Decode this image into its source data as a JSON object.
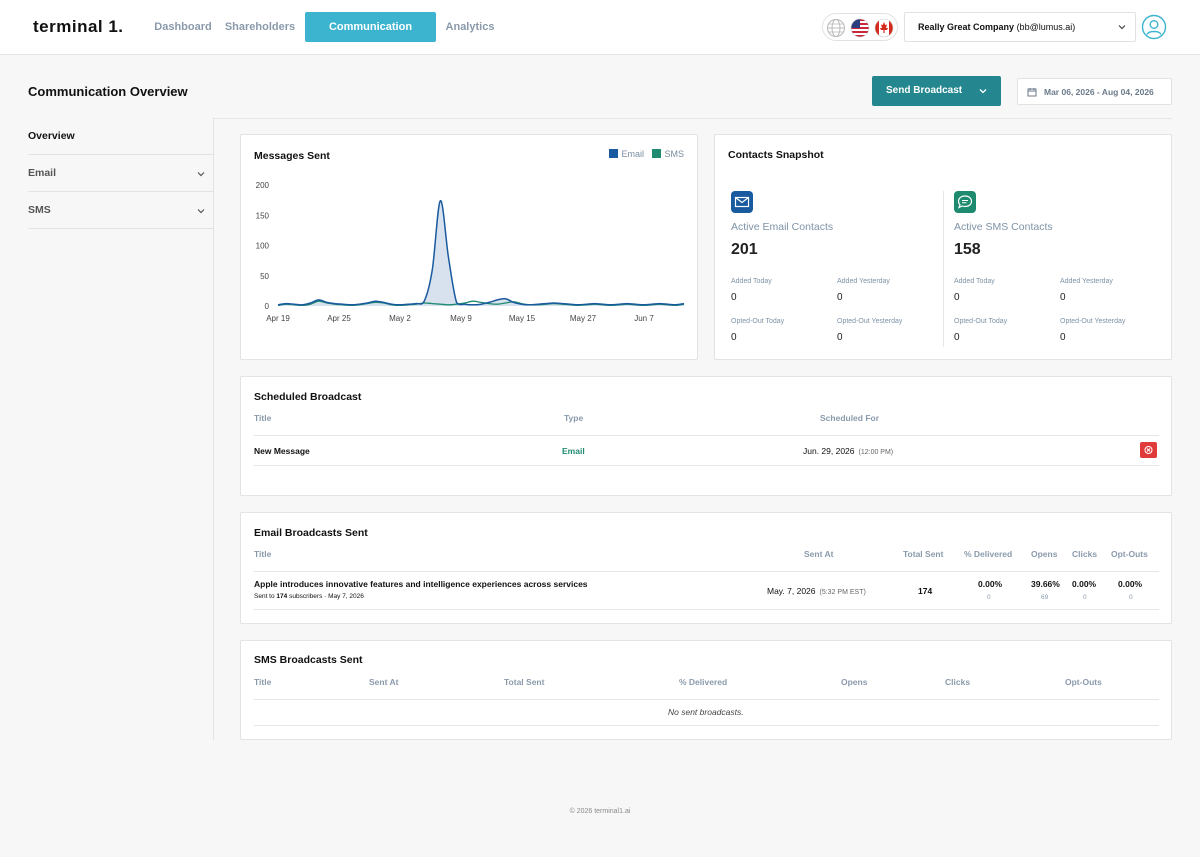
{
  "app": {
    "logo": "terminal 1."
  },
  "nav": {
    "tabs": [
      {
        "label": "Dashboard"
      },
      {
        "label": "Shareholders"
      },
      {
        "label": "Communication"
      },
      {
        "label": "Analytics"
      }
    ],
    "company_name": "Really Great Company",
    "company_email": "(bb@lumus.ai)"
  },
  "page": {
    "title": "Communication Overview",
    "send_broadcast_label": "Send Broadcast",
    "date_range": "Mar 06, 2026 - Aug 04, 2026"
  },
  "sidebar": {
    "items": [
      {
        "label": "Overview"
      },
      {
        "label": "Email"
      },
      {
        "label": "SMS"
      }
    ]
  },
  "messages_sent": {
    "title": "Messages Sent",
    "legend_email": "Email",
    "legend_sms": "SMS"
  },
  "chart_data": {
    "type": "area",
    "title": "Messages Sent",
    "colors": {
      "email": "#1a5a9e",
      "sms": "#1e8a6f",
      "email_fill": "#c9d8e8"
    },
    "x_ticks": [
      "Apr 19",
      "Apr 25",
      "May 2",
      "May 9",
      "May 15",
      "May 27",
      "Jun 7"
    ],
    "y_ticks": [
      0,
      50,
      100,
      150,
      200
    ],
    "ylim": [
      0,
      200
    ],
    "legend_position": "top-right",
    "x": [
      0,
      1,
      2,
      3,
      4,
      5,
      6,
      7,
      8,
      9,
      10,
      11,
      12,
      13,
      14,
      15,
      16,
      17,
      18,
      19,
      20,
      21,
      22,
      23,
      24,
      25,
      26,
      27,
      28,
      29,
      30,
      31,
      32,
      33,
      34,
      35,
      36,
      37,
      38,
      39,
      40,
      41,
      42,
      43,
      44,
      45,
      46,
      47,
      48,
      49,
      50
    ],
    "series": [
      {
        "name": "Email",
        "values": [
          2,
          4,
          3,
          2,
          5,
          10,
          6,
          4,
          3,
          2,
          3,
          5,
          8,
          6,
          3,
          2,
          3,
          4,
          8,
          60,
          174,
          80,
          6,
          3,
          2,
          3,
          6,
          10,
          12,
          6,
          3,
          2,
          3,
          4,
          5,
          4,
          3,
          2,
          3,
          4,
          3,
          2,
          3,
          4,
          3,
          2,
          3,
          4,
          3,
          2,
          4
        ]
      },
      {
        "name": "SMS",
        "values": [
          1,
          3,
          2,
          1,
          3,
          8,
          5,
          3,
          2,
          1,
          2,
          4,
          6,
          5,
          2,
          1,
          2,
          3,
          5,
          4,
          3,
          2,
          3,
          5,
          8,
          6,
          4,
          3,
          5,
          7,
          4,
          2,
          2,
          3,
          4,
          3,
          2,
          1,
          2,
          3,
          2,
          1,
          2,
          3,
          2,
          1,
          2,
          3,
          2,
          1,
          3
        ]
      }
    ]
  },
  "contacts": {
    "title": "Contacts Snapshot",
    "email": {
      "label": "Active Email Contacts",
      "count": "201",
      "added_today_label": "Added Today",
      "added_today": "0",
      "added_yesterday_label": "Added Yesterday",
      "added_yesterday": "0",
      "optout_today_label": "Opted-Out Today",
      "optout_today": "0",
      "optout_yesterday_label": "Opted-Out Yesterday",
      "optout_yesterday": "0"
    },
    "sms": {
      "label": "Active SMS Contacts",
      "count": "158",
      "added_today_label": "Added Today",
      "added_today": "0",
      "added_yesterday_label": "Added Yesterday",
      "added_yesterday": "0",
      "optout_today_label": "Opted-Out Today",
      "optout_today": "0",
      "optout_yesterday_label": "Opted-Out Yesterday",
      "optout_yesterday": "0"
    }
  },
  "scheduled": {
    "title": "Scheduled Broadcast",
    "headers": {
      "title": "Title",
      "type": "Type",
      "scheduled_for": "Scheduled For"
    },
    "rows": [
      {
        "title": "New Message",
        "type": "Email",
        "date": "Jun. 29, 2026",
        "time": "(12:00 PM)"
      }
    ]
  },
  "email_sent": {
    "title": "Email Broadcasts Sent",
    "headers": {
      "title": "Title",
      "sent_at": "Sent At",
      "total_sent": "Total Sent",
      "delivered": "% Delivered",
      "opens": "Opens",
      "clicks": "Clicks",
      "optouts": "Opt-Outs"
    },
    "rows": [
      {
        "title": "Apple introduces innovative features and intelligence experiences across services",
        "sub_prefix": "Sent to",
        "sub_count": "174",
        "sub_suffix": "subscribers · May 7, 2026",
        "sent_date": "May. 7, 2026",
        "sent_time": "(5:32 PM EST)",
        "total": "174",
        "delivered": "0.00%",
        "delivered_n": "0",
        "opens": "39.66%",
        "opens_n": "69",
        "clicks": "0.00%",
        "clicks_n": "0",
        "optouts": "0.00%",
        "optouts_n": "0"
      }
    ]
  },
  "sms_sent": {
    "title": "SMS Broadcasts Sent",
    "headers": {
      "title": "Title",
      "sent_at": "Sent At",
      "total_sent": "Total Sent",
      "delivered": "% Delivered",
      "opens": "Opens",
      "clicks": "Clicks",
      "optouts": "Opt-Outs"
    },
    "empty_text": "No sent broadcasts."
  },
  "footer": {
    "text": "© 2026 terminal1.ai"
  },
  "icons": [
    "globe-icon",
    "us-flag-icon",
    "canada-flag-icon",
    "chevron-down-icon",
    "user-icon",
    "calendar-icon",
    "envelope-icon",
    "chat-bubble-icon",
    "cancel-icon"
  ]
}
